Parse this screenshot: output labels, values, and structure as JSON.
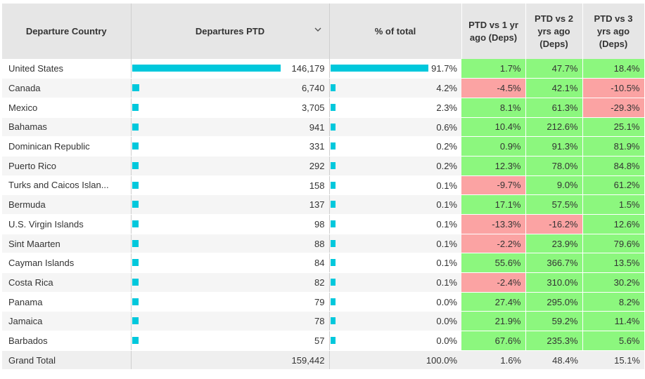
{
  "headers": {
    "country": "Departure Country",
    "departures": "Departures PTD",
    "pct_total": "% of total",
    "vs1": "PTD vs 1 yr ago (Deps)",
    "vs2": "PTD vs 2 yrs ago (Deps)",
    "vs3": "PTD vs 3 yrs ago (Deps)"
  },
  "sort_icon": "chevron-down-icon",
  "colors": {
    "bar": "#00c8dc",
    "positive": "#8cf77e",
    "negative": "#fba3a3",
    "header": "#e6e6e6"
  },
  "rows": [
    {
      "country": "United States",
      "deps": "146,179",
      "deps_n": 146179,
      "pct": "91.7%",
      "pct_n": 91.7,
      "vs1": "1.7%",
      "vs2": "47.7%",
      "vs3": "18.4%"
    },
    {
      "country": "Canada",
      "deps": "6,740",
      "deps_n": 6740,
      "pct": "4.2%",
      "pct_n": 4.2,
      "vs1": "-4.5%",
      "vs2": "42.1%",
      "vs3": "-10.5%"
    },
    {
      "country": "Mexico",
      "deps": "3,705",
      "deps_n": 3705,
      "pct": "2.3%",
      "pct_n": 2.3,
      "vs1": "8.1%",
      "vs2": "61.3%",
      "vs3": "-29.3%"
    },
    {
      "country": "Bahamas",
      "deps": "941",
      "deps_n": 941,
      "pct": "0.6%",
      "pct_n": 0.6,
      "vs1": "10.4%",
      "vs2": "212.6%",
      "vs3": "25.1%"
    },
    {
      "country": "Dominican Republic",
      "deps": "331",
      "deps_n": 331,
      "pct": "0.2%",
      "pct_n": 0.2,
      "vs1": "0.9%",
      "vs2": "91.3%",
      "vs3": "81.9%"
    },
    {
      "country": "Puerto Rico",
      "deps": "292",
      "deps_n": 292,
      "pct": "0.2%",
      "pct_n": 0.2,
      "vs1": "12.3%",
      "vs2": "78.0%",
      "vs3": "84.8%"
    },
    {
      "country": "Turks and Caicos Islan...",
      "deps": "158",
      "deps_n": 158,
      "pct": "0.1%",
      "pct_n": 0.1,
      "vs1": "-9.7%",
      "vs2": "9.0%",
      "vs3": "61.2%"
    },
    {
      "country": "Bermuda",
      "deps": "137",
      "deps_n": 137,
      "pct": "0.1%",
      "pct_n": 0.1,
      "vs1": "17.1%",
      "vs2": "57.5%",
      "vs3": "1.5%"
    },
    {
      "country": "U.S. Virgin Islands",
      "deps": "98",
      "deps_n": 98,
      "pct": "0.1%",
      "pct_n": 0.1,
      "vs1": "-13.3%",
      "vs2": "-16.2%",
      "vs3": "12.6%"
    },
    {
      "country": "Sint Maarten",
      "deps": "88",
      "deps_n": 88,
      "pct": "0.1%",
      "pct_n": 0.1,
      "vs1": "-2.2%",
      "vs2": "23.9%",
      "vs3": "79.6%"
    },
    {
      "country": "Cayman Islands",
      "deps": "84",
      "deps_n": 84,
      "pct": "0.1%",
      "pct_n": 0.1,
      "vs1": "55.6%",
      "vs2": "366.7%",
      "vs3": "13.5%"
    },
    {
      "country": "Costa Rica",
      "deps": "82",
      "deps_n": 82,
      "pct": "0.1%",
      "pct_n": 0.1,
      "vs1": "-2.4%",
      "vs2": "310.0%",
      "vs3": "30.2%"
    },
    {
      "country": "Panama",
      "deps": "79",
      "deps_n": 79,
      "pct": "0.0%",
      "pct_n": 0.0,
      "vs1": "27.4%",
      "vs2": "295.0%",
      "vs3": "8.2%"
    },
    {
      "country": "Jamaica",
      "deps": "78",
      "deps_n": 78,
      "pct": "0.0%",
      "pct_n": 0.0,
      "vs1": "21.9%",
      "vs2": "59.2%",
      "vs3": "11.4%"
    },
    {
      "country": "Barbados",
      "deps": "57",
      "deps_n": 57,
      "pct": "0.0%",
      "pct_n": 0.0,
      "vs1": "67.6%",
      "vs2": "235.3%",
      "vs3": "5.6%"
    }
  ],
  "total": {
    "label": "Grand Total",
    "deps": "159,442",
    "pct": "100.0%",
    "vs1": "1.6%",
    "vs2": "48.4%",
    "vs3": "15.1%"
  }
}
